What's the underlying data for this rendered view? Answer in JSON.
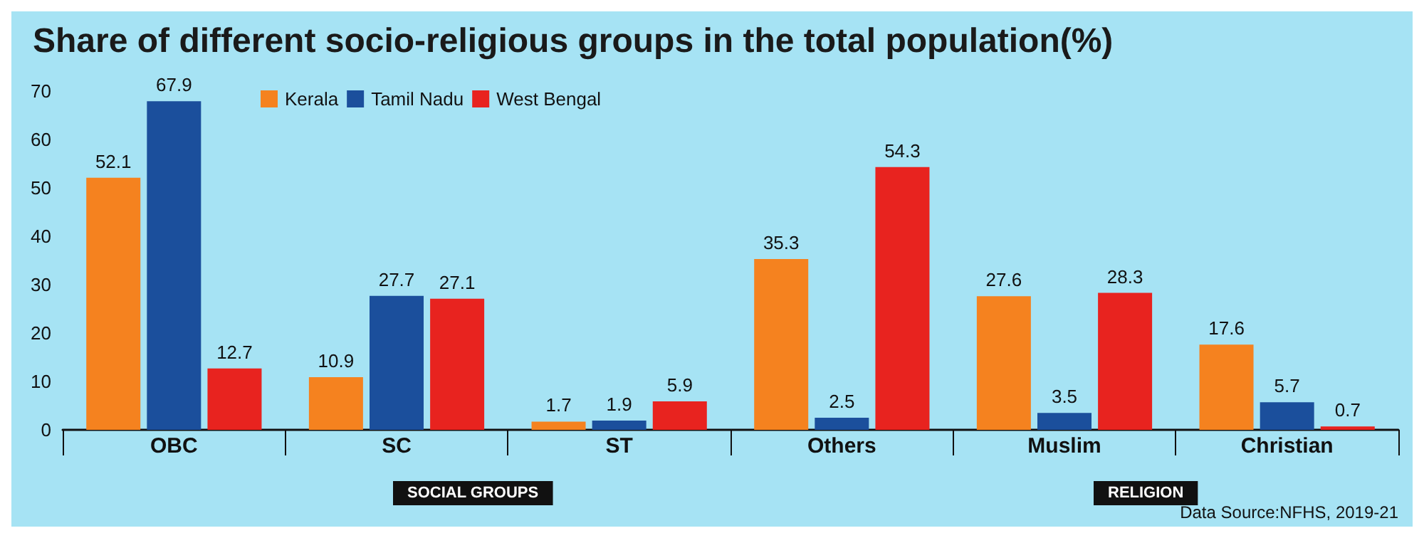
{
  "chart_data": {
    "type": "bar",
    "title": "Share of different socio-religious groups in the total population(%)",
    "categories": [
      "OBC",
      "SC",
      "ST",
      "Others",
      "Muslim",
      "Christian"
    ],
    "series": [
      {
        "name": "Kerala",
        "color": "#f5821f",
        "values": [
          52.1,
          10.9,
          1.7,
          35.3,
          27.6,
          17.6
        ]
      },
      {
        "name": "Tamil Nadu",
        "color": "#1b4f9c",
        "values": [
          67.9,
          27.7,
          1.9,
          2.5,
          3.5,
          5.7
        ]
      },
      {
        "name": "West Bengal",
        "color": "#e8231f",
        "values": [
          12.7,
          27.1,
          5.9,
          54.3,
          28.3,
          0.7
        ]
      }
    ],
    "ylim": [
      0,
      70
    ],
    "yticks": [
      0,
      10,
      20,
      30,
      40,
      50,
      60,
      70
    ],
    "grid": false,
    "legend": "top left",
    "data_labels": true,
    "annotations": [
      "SOCIAL GROUPS",
      "RELIGION",
      "Data Source:NFHS, 2019-21"
    ]
  }
}
